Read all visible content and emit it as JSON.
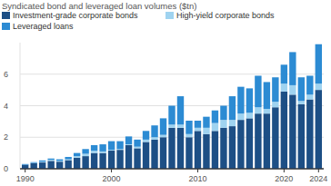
{
  "chart_data": {
    "type": "bar",
    "title": "Syndicated bond and leveraged loan volumes ($tn)",
    "x": [
      1990,
      1991,
      1992,
      1993,
      1994,
      1995,
      1996,
      1997,
      1998,
      1999,
      2000,
      2001,
      2002,
      2003,
      2004,
      2005,
      2006,
      2007,
      2008,
      2009,
      2010,
      2011,
      2012,
      2013,
      2014,
      2015,
      2016,
      2017,
      2018,
      2019,
      2020,
      2021,
      2022,
      2023,
      2024
    ],
    "series": [
      {
        "name": "Investment-grade corporate bonds",
        "color": "#1d4f85",
        "values": [
          0.25,
          0.35,
          0.4,
          0.5,
          0.45,
          0.55,
          0.7,
          0.8,
          1.0,
          1.0,
          1.15,
          1.2,
          1.5,
          1.3,
          1.7,
          1.85,
          2.0,
          2.6,
          2.6,
          2.0,
          2.4,
          2.2,
          2.4,
          2.6,
          2.7,
          3.1,
          3.2,
          3.5,
          3.5,
          3.9,
          4.9,
          4.7,
          4.1,
          4.4,
          5.0
        ]
      },
      {
        "name": "High-yield corporate bonds",
        "color": "#9fd3f0",
        "values": [
          0.0,
          0.02,
          0.05,
          0.07,
          0.05,
          0.05,
          0.1,
          0.15,
          0.15,
          0.1,
          0.05,
          0.05,
          0.05,
          0.1,
          0.15,
          0.15,
          0.15,
          0.2,
          0.2,
          0.2,
          0.2,
          0.4,
          0.5,
          0.5,
          0.4,
          0.4,
          0.35,
          0.4,
          0.3,
          0.35,
          0.5,
          0.6,
          0.2,
          0.3,
          0.4
        ]
      },
      {
        "name": "Leveraged loans",
        "color": "#2c8bd3",
        "values": [
          0.05,
          0.05,
          0.08,
          0.08,
          0.1,
          0.15,
          0.2,
          0.3,
          0.35,
          0.45,
          0.55,
          0.5,
          0.5,
          0.45,
          0.55,
          0.75,
          1.05,
          1.2,
          1.8,
          0.85,
          0.45,
          0.7,
          0.8,
          0.9,
          1.5,
          1.7,
          1.55,
          2.0,
          1.7,
          1.55,
          1.2,
          2.1,
          1.5,
          1.2,
          2.5
        ]
      }
    ],
    "xlim": [
      1989.4,
      2024.6
    ],
    "xticks": [
      1990,
      2000,
      2010,
      2020,
      2024
    ],
    "ylim": [
      0,
      8
    ],
    "yticks": [
      0,
      2,
      4,
      6
    ],
    "stacked": true,
    "grid": true,
    "legend": "top-left"
  }
}
